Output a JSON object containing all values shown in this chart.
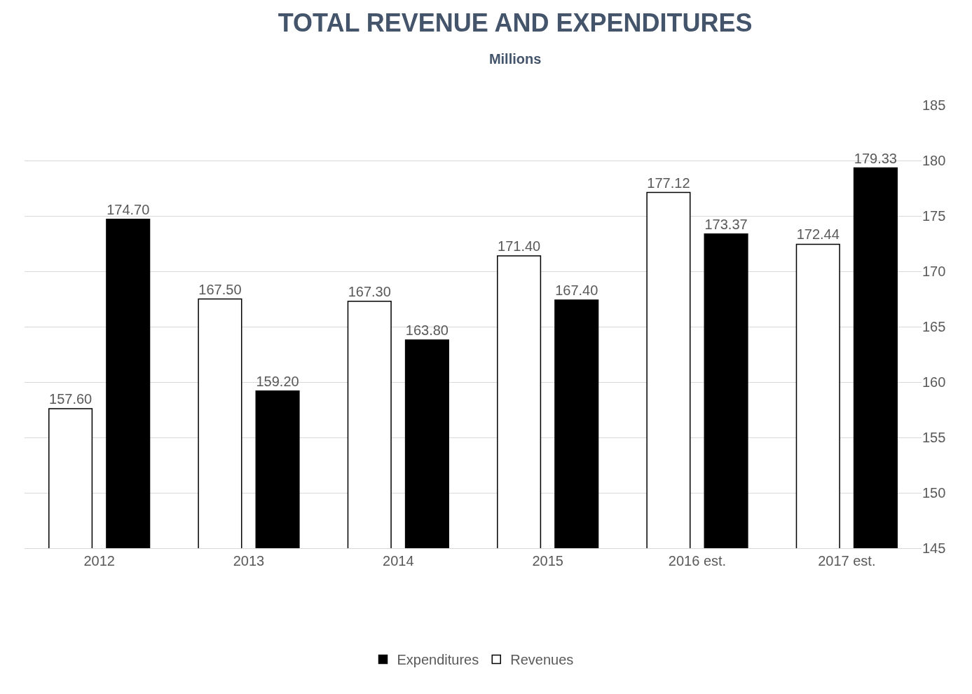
{
  "chart_data": {
    "type": "bar",
    "title": "TOTAL REVENUE AND EXPENDITURES",
    "subtitle": "Millions",
    "categories": [
      "2012",
      "2013",
      "2014",
      "2015",
      "2016 est.",
      "2017 est."
    ],
    "series": [
      {
        "name": "Revenues",
        "color": "#ffffff",
        "values": [
          157.6,
          167.5,
          167.3,
          171.4,
          177.12,
          172.44
        ],
        "value_labels": [
          "157.60",
          "167.50",
          "167.30",
          "171.40",
          "177.12",
          "172.44"
        ]
      },
      {
        "name": "Expenditures",
        "color": "#000000",
        "values": [
          174.7,
          159.2,
          163.8,
          167.4,
          173.37,
          179.33
        ],
        "value_labels": [
          "174.70",
          "159.20",
          "163.80",
          "167.40",
          "173.37",
          "179.33"
        ]
      }
    ],
    "ylim": [
      145,
      185
    ],
    "yticks": [
      145,
      150,
      155,
      160,
      165,
      170,
      175,
      180,
      185
    ],
    "grid": "y",
    "legend": "bottom"
  }
}
